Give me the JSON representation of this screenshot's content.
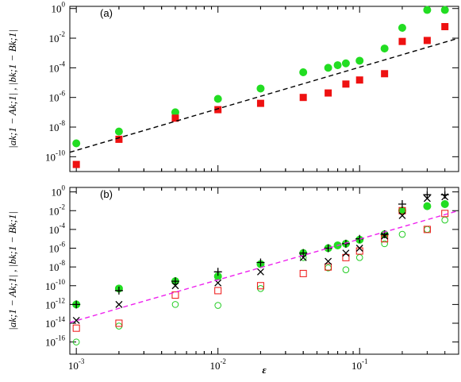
{
  "chart_data": [
    {
      "type": "scatter",
      "annotation": "(a)",
      "y_label": "|ak;1 − Ak;1| , |bk;1 − Bk;1|",
      "log_x": true,
      "log_y": true,
      "xlim": [
        0.0009,
        0.5
      ],
      "ylim": [
        1e-11,
        1.4
      ],
      "yticks": [
        {
          "value": 1,
          "label": "10",
          "exponent": "0"
        },
        {
          "value": 0.01,
          "label": "10",
          "exponent": "-2"
        },
        {
          "value": 0.0001,
          "label": "10",
          "exponent": "-4"
        },
        {
          "value": 1e-06,
          "label": "10",
          "exponent": "-6"
        },
        {
          "value": 1e-08,
          "label": "10",
          "exponent": "-8"
        },
        {
          "value": 1e-10,
          "label": "10",
          "exponent": "-10"
        }
      ],
      "x": [
        0.001,
        0.002,
        0.005,
        0.01,
        0.02,
        0.04,
        0.06,
        0.07,
        0.08,
        0.1,
        0.15,
        0.2,
        0.3,
        0.4
      ],
      "series": [
        {
          "marker": "circle",
          "filled": true,
          "color": "#22dd22",
          "values": [
            8e-10,
            5e-09,
            1e-07,
            8e-07,
            4e-06,
            5e-05,
            0.0001,
            0.00015,
            0.0002,
            0.0003,
            0.002,
            0.05,
            0.8,
            0.8
          ]
        },
        {
          "marker": "square",
          "filled": true,
          "color": "#ee1111",
          "values": [
            3e-11,
            1.5e-09,
            4e-08,
            1.5e-07,
            4e-07,
            1e-06,
            2e-06,
            null,
            8e-06,
            1.5e-05,
            4e-05,
            0.006,
            0.007,
            0.06
          ]
        },
        {
          "type": "line",
          "dashed": true,
          "color": "#000000",
          "x": [
            0.0009,
            0.5
          ],
          "values": [
            2e-10,
            0.01
          ]
        }
      ]
    },
    {
      "type": "scatter",
      "annotation": "(b)",
      "y_label": "|ak;1 − Ak;1| , |bk;1 − Bk;1|",
      "x_label": "ε",
      "log_x": true,
      "log_y": true,
      "xlim": [
        0.0009,
        0.5
      ],
      "ylim": [
        5e-18,
        3
      ],
      "xticks": [
        {
          "value": 0.001,
          "label": "10",
          "exponent": "-3"
        },
        {
          "value": 0.01,
          "label": "10",
          "exponent": "-2"
        },
        {
          "value": 0.1,
          "label": "10",
          "exponent": "-1"
        }
      ],
      "yticks": [
        {
          "value": 1,
          "label": "10",
          "exponent": "0"
        },
        {
          "value": 0.01,
          "label": "10",
          "exponent": "-2"
        },
        {
          "value": 0.0001,
          "label": "10",
          "exponent": "-4"
        },
        {
          "value": 1e-06,
          "label": "10",
          "exponent": "-6"
        },
        {
          "value": 1e-08,
          "label": "10",
          "exponent": "-8"
        },
        {
          "value": 1e-10,
          "label": "10",
          "exponent": "-10"
        },
        {
          "value": 1e-12,
          "label": "10",
          "exponent": "-12"
        },
        {
          "value": 1e-14,
          "label": "10",
          "exponent": "-14"
        },
        {
          "value": 1e-16,
          "label": "10",
          "exponent": "-16"
        }
      ],
      "x": [
        0.001,
        0.002,
        0.005,
        0.01,
        0.02,
        0.04,
        0.06,
        0.07,
        0.08,
        0.1,
        0.15,
        0.2,
        0.3,
        0.4
      ],
      "series": [
        {
          "marker": "circle",
          "filled": true,
          "color": "#22dd22",
          "values": [
            1e-12,
            5e-11,
            3e-10,
            1e-09,
            2e-08,
            3e-07,
            1e-06,
            2e-06,
            3e-06,
            8e-06,
            3e-05,
            0.01,
            0.03,
            0.05
          ]
        },
        {
          "marker": "circle",
          "filled": false,
          "color": "#22cc22",
          "values": [
            1e-16,
            5e-15,
            1e-12,
            8e-13,
            5e-11,
            1e-07,
            8e-09,
            null,
            5e-09,
            1e-07,
            3e-06,
            3e-05,
            0.0001,
            0.001
          ]
        },
        {
          "marker": "square",
          "filled": false,
          "color": "#ee1111",
          "values": [
            3e-15,
            1e-14,
            1e-11,
            3e-11,
            1e-10,
            2e-09,
            1e-08,
            null,
            1e-07,
            5e-07,
            1e-05,
            0.01,
            0.0001,
            0.005
          ]
        },
        {
          "marker": "cross",
          "color": "#000000",
          "values": [
            2e-14,
            1e-12,
            1e-10,
            2e-10,
            3e-09,
            1e-07,
            4e-08,
            null,
            3e-07,
            1e-06,
            2e-05,
            0.003,
            0.2,
            0.3
          ]
        },
        {
          "marker": "plus",
          "color": "#000000",
          "values": [
            1e-12,
            3e-11,
            3e-10,
            3e-09,
            3e-08,
            3e-07,
            1e-06,
            null,
            3e-06,
            1e-05,
            3e-05,
            0.05,
            0.5,
            0.5
          ]
        },
        {
          "type": "line",
          "dashed": true,
          "color": "#ee22ee",
          "x": [
            0.0009,
            0.5
          ],
          "values": [
            1.2e-14,
            0.01
          ]
        }
      ]
    }
  ]
}
